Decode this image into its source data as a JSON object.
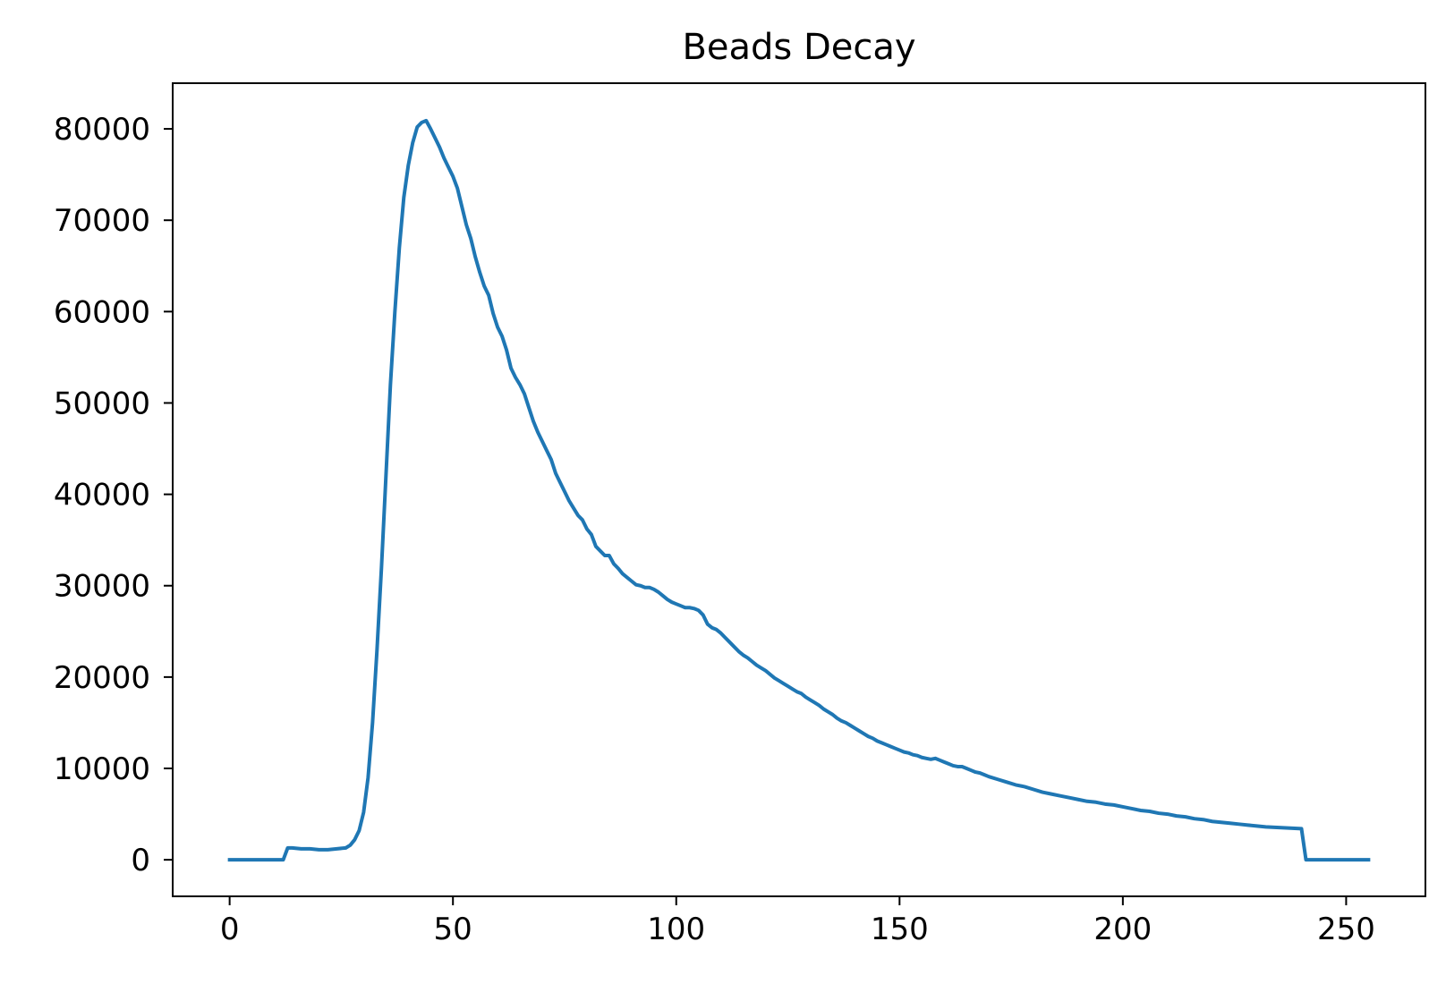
{
  "chart_data": {
    "type": "line",
    "title": "Beads Decay",
    "xlabel": "",
    "ylabel": "",
    "xlim": [
      -12.75,
      267.75
    ],
    "ylim": [
      -4000,
      85000
    ],
    "xticks": [
      0,
      50,
      100,
      150,
      200,
      250
    ],
    "yticks": [
      0,
      10000,
      20000,
      30000,
      40000,
      50000,
      60000,
      70000,
      80000
    ],
    "grid": false,
    "legend": "none",
    "series": [
      {
        "color": "#1f77b4",
        "points": [
          [
            0,
            0
          ],
          [
            12,
            0
          ],
          [
            13,
            1300
          ],
          [
            14,
            1300
          ],
          [
            16,
            1200
          ],
          [
            18,
            1200
          ],
          [
            20,
            1100
          ],
          [
            22,
            1100
          ],
          [
            24,
            1200
          ],
          [
            26,
            1300
          ],
          [
            27,
            1600
          ],
          [
            28,
            2200
          ],
          [
            29,
            3200
          ],
          [
            30,
            5200
          ],
          [
            31,
            9000
          ],
          [
            32,
            15000
          ],
          [
            33,
            23000
          ],
          [
            34,
            32000
          ],
          [
            35,
            42000
          ],
          [
            36,
            52000
          ],
          [
            37,
            60000
          ],
          [
            38,
            67000
          ],
          [
            39,
            72500
          ],
          [
            40,
            76000
          ],
          [
            41,
            78500
          ],
          [
            42,
            80200
          ],
          [
            43,
            80700
          ],
          [
            44,
            80900
          ],
          [
            45,
            80000
          ],
          [
            46,
            79000
          ],
          [
            47,
            78000
          ],
          [
            48,
            76800
          ],
          [
            49,
            75800
          ],
          [
            50,
            74800
          ],
          [
            51,
            73500
          ],
          [
            52,
            71500
          ],
          [
            53,
            69500
          ],
          [
            54,
            68000
          ],
          [
            55,
            66000
          ],
          [
            56,
            64300
          ],
          [
            57,
            62800
          ],
          [
            58,
            61800
          ],
          [
            59,
            59800
          ],
          [
            60,
            58300
          ],
          [
            61,
            57300
          ],
          [
            62,
            55800
          ],
          [
            63,
            53800
          ],
          [
            64,
            52800
          ],
          [
            65,
            52000
          ],
          [
            66,
            51000
          ],
          [
            67,
            49500
          ],
          [
            68,
            48000
          ],
          [
            69,
            46800
          ],
          [
            70,
            45800
          ],
          [
            71,
            44800
          ],
          [
            72,
            43800
          ],
          [
            73,
            42300
          ],
          [
            74,
            41300
          ],
          [
            75,
            40300
          ],
          [
            76,
            39300
          ],
          [
            77,
            38500
          ],
          [
            78,
            37700
          ],
          [
            79,
            37200
          ],
          [
            80,
            36200
          ],
          [
            81,
            35600
          ],
          [
            82,
            34300
          ],
          [
            83,
            33800
          ],
          [
            84,
            33300
          ],
          [
            85,
            33300
          ],
          [
            86,
            32400
          ],
          [
            87,
            31900
          ],
          [
            88,
            31300
          ],
          [
            89,
            30900
          ],
          [
            90,
            30500
          ],
          [
            91,
            30100
          ],
          [
            92,
            30000
          ],
          [
            93,
            29800
          ],
          [
            94,
            29800
          ],
          [
            95,
            29600
          ],
          [
            96,
            29300
          ],
          [
            97,
            28900
          ],
          [
            98,
            28500
          ],
          [
            99,
            28200
          ],
          [
            100,
            28000
          ],
          [
            101,
            27800
          ],
          [
            102,
            27600
          ],
          [
            103,
            27600
          ],
          [
            104,
            27500
          ],
          [
            105,
            27300
          ],
          [
            106,
            26800
          ],
          [
            107,
            25800
          ],
          [
            108,
            25400
          ],
          [
            109,
            25200
          ],
          [
            110,
            24800
          ],
          [
            111,
            24300
          ],
          [
            112,
            23800
          ],
          [
            113,
            23300
          ],
          [
            114,
            22800
          ],
          [
            115,
            22400
          ],
          [
            116,
            22100
          ],
          [
            117,
            21700
          ],
          [
            118,
            21300
          ],
          [
            119,
            21000
          ],
          [
            120,
            20700
          ],
          [
            121,
            20300
          ],
          [
            122,
            19900
          ],
          [
            123,
            19600
          ],
          [
            124,
            19300
          ],
          [
            125,
            19000
          ],
          [
            126,
            18700
          ],
          [
            127,
            18400
          ],
          [
            128,
            18200
          ],
          [
            129,
            17800
          ],
          [
            130,
            17500
          ],
          [
            131,
            17200
          ],
          [
            132,
            16900
          ],
          [
            133,
            16500
          ],
          [
            134,
            16200
          ],
          [
            135,
            15900
          ],
          [
            136,
            15500
          ],
          [
            137,
            15200
          ],
          [
            138,
            15000
          ],
          [
            139,
            14700
          ],
          [
            140,
            14400
          ],
          [
            141,
            14100
          ],
          [
            142,
            13800
          ],
          [
            143,
            13500
          ],
          [
            144,
            13300
          ],
          [
            145,
            13000
          ],
          [
            146,
            12800
          ],
          [
            147,
            12600
          ],
          [
            148,
            12400
          ],
          [
            149,
            12200
          ],
          [
            150,
            12000
          ],
          [
            151,
            11800
          ],
          [
            152,
            11700
          ],
          [
            153,
            11500
          ],
          [
            154,
            11400
          ],
          [
            155,
            11200
          ],
          [
            156,
            11100
          ],
          [
            157,
            11000
          ],
          [
            158,
            11100
          ],
          [
            159,
            10900
          ],
          [
            160,
            10700
          ],
          [
            161,
            10500
          ],
          [
            162,
            10300
          ],
          [
            163,
            10200
          ],
          [
            164,
            10200
          ],
          [
            165,
            10000
          ],
          [
            166,
            9800
          ],
          [
            167,
            9600
          ],
          [
            168,
            9500
          ],
          [
            169,
            9300
          ],
          [
            170,
            9100
          ],
          [
            172,
            8800
          ],
          [
            174,
            8500
          ],
          [
            176,
            8200
          ],
          [
            178,
            8000
          ],
          [
            180,
            7700
          ],
          [
            182,
            7400
          ],
          [
            184,
            7200
          ],
          [
            186,
            7000
          ],
          [
            188,
            6800
          ],
          [
            190,
            6600
          ],
          [
            192,
            6400
          ],
          [
            194,
            6300
          ],
          [
            196,
            6100
          ],
          [
            198,
            6000
          ],
          [
            200,
            5800
          ],
          [
            202,
            5600
          ],
          [
            204,
            5400
          ],
          [
            206,
            5300
          ],
          [
            208,
            5100
          ],
          [
            210,
            5000
          ],
          [
            212,
            4800
          ],
          [
            214,
            4700
          ],
          [
            216,
            4500
          ],
          [
            218,
            4400
          ],
          [
            220,
            4200
          ],
          [
            222,
            4100
          ],
          [
            224,
            4000
          ],
          [
            226,
            3900
          ],
          [
            228,
            3800
          ],
          [
            230,
            3700
          ],
          [
            232,
            3600
          ],
          [
            234,
            3550
          ],
          [
            236,
            3500
          ],
          [
            238,
            3450
          ],
          [
            240,
            3400
          ],
          [
            241,
            0
          ],
          [
            255,
            0
          ]
        ]
      }
    ]
  }
}
